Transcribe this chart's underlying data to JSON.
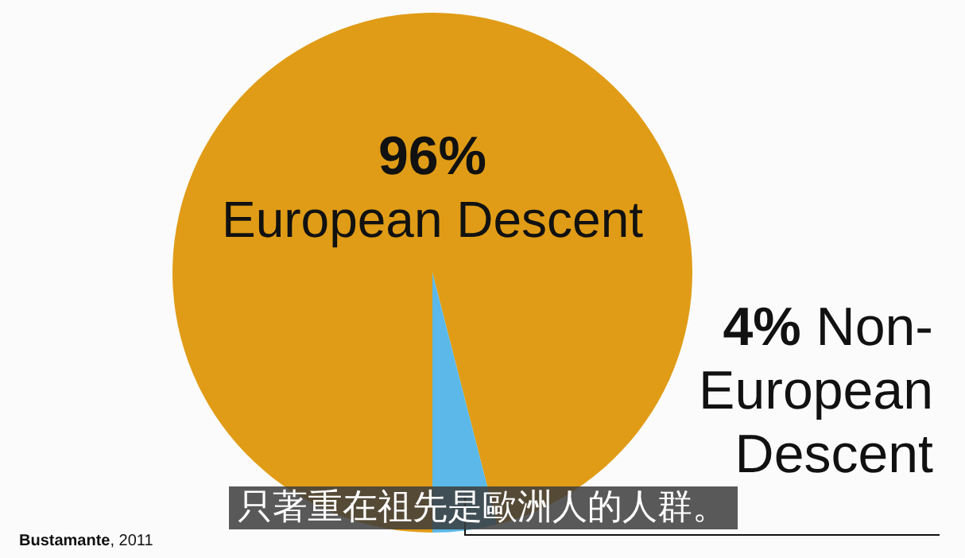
{
  "chart_data": {
    "type": "pie",
    "categories": [
      "European Descent",
      "Non-European Descent"
    ],
    "values": [
      96,
      4
    ],
    "colors": [
      "#e09c16",
      "#5bb8e8"
    ],
    "value_labels": [
      "96%",
      "4%"
    ],
    "annotations": [
      "只著重在祖先是歐洲人的人群。",
      "Bustamante, 2011"
    ]
  }
}
